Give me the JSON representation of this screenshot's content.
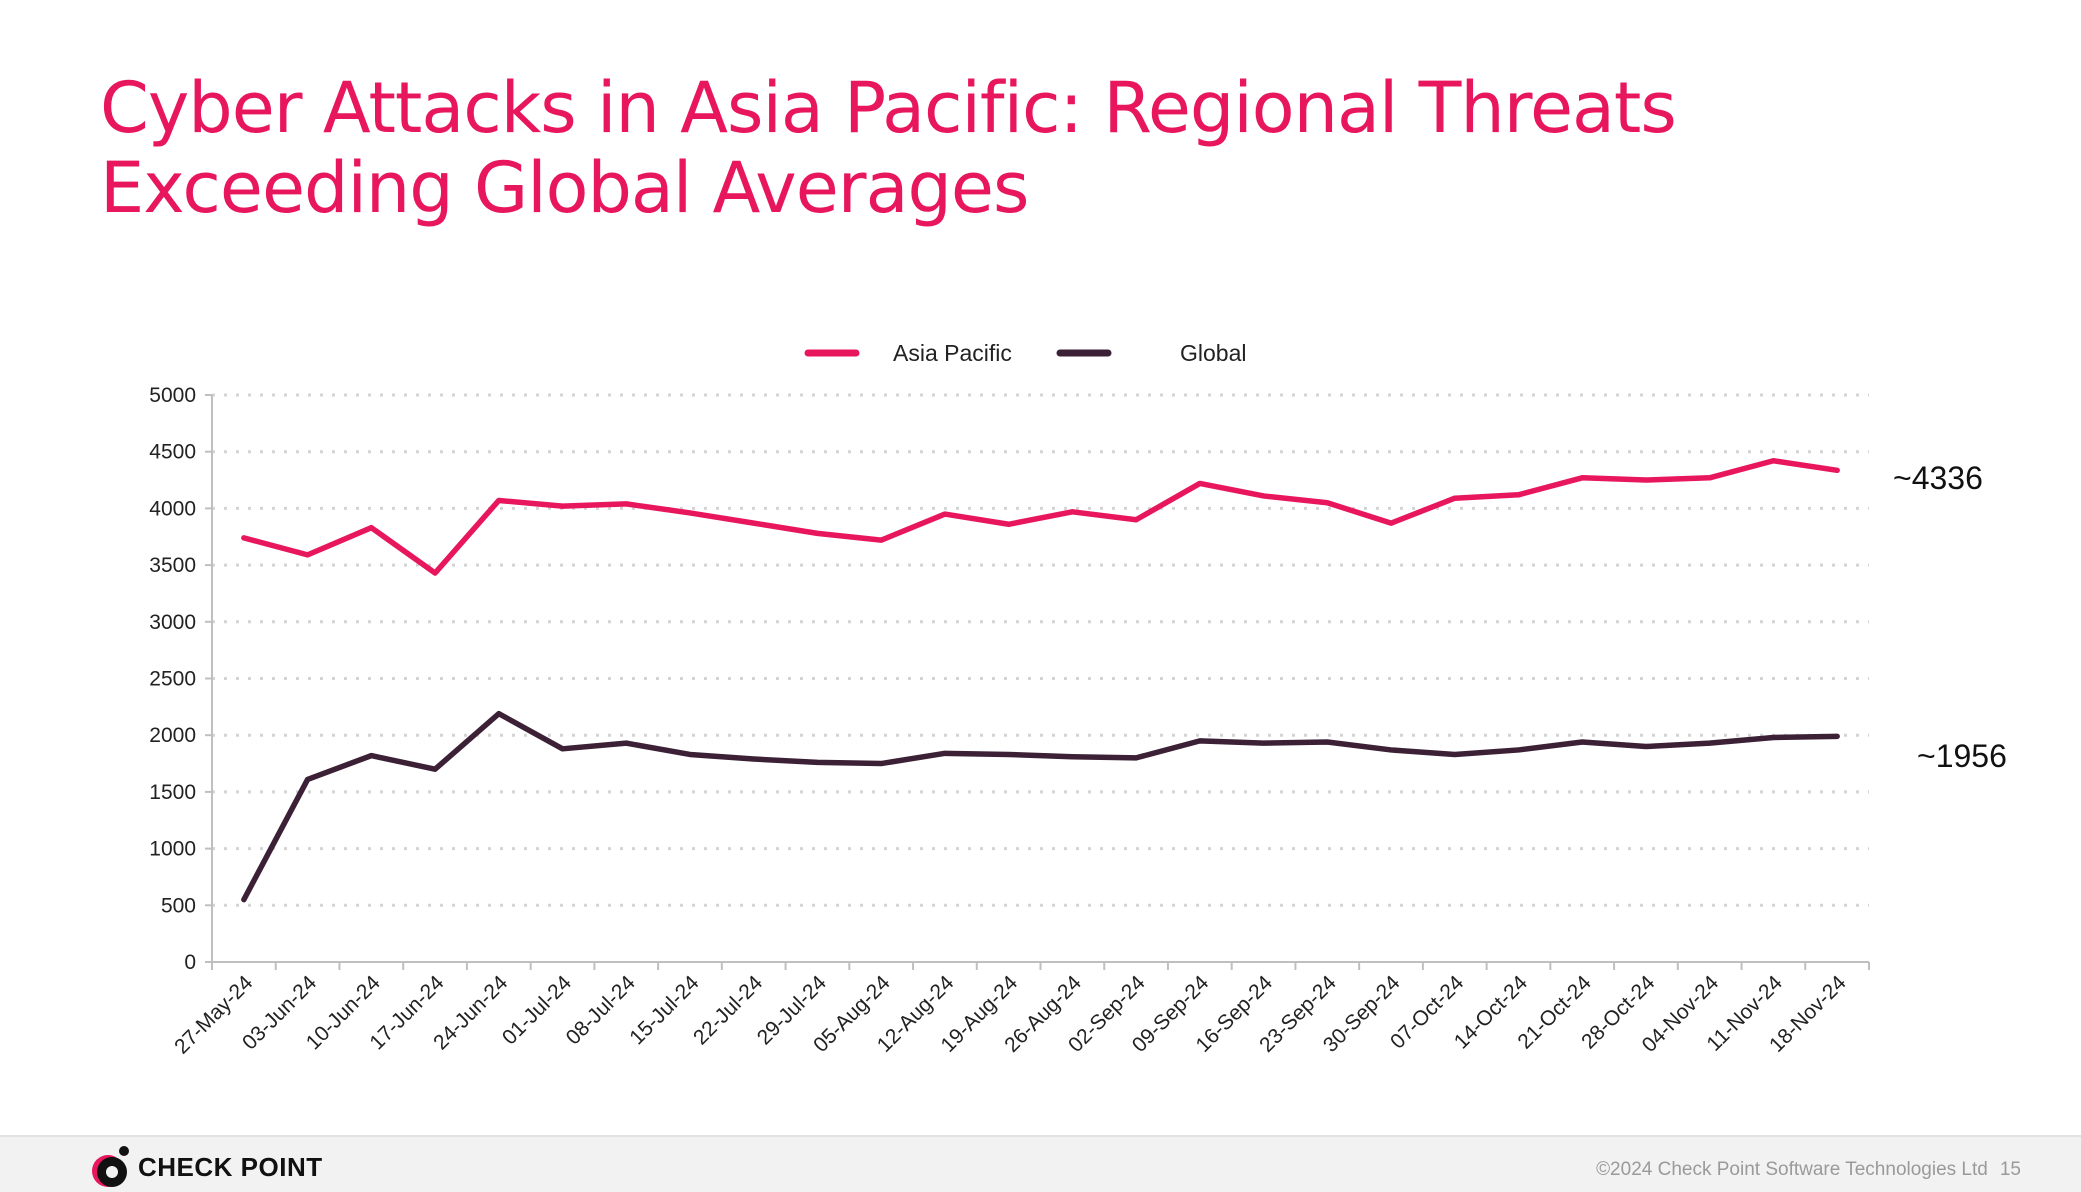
{
  "title": "Cyber Attacks in Asia Pacific: Regional Threats Exceeding Global Averages",
  "footer": {
    "logo_text": "CHECK POINT",
    "copyright": "©2024 Check Point Software Technologies Ltd",
    "page_number": "15"
  },
  "chart_data": {
    "type": "line",
    "title": "",
    "xlabel": "",
    "ylabel": "",
    "ylim": [
      0,
      5000
    ],
    "yticks": [
      0,
      500,
      1000,
      1500,
      2000,
      2500,
      3000,
      3500,
      4000,
      4500,
      5000
    ],
    "grid": true,
    "legend_position": "top-center",
    "categories": [
      "27-May-24",
      "03-Jun-24",
      "10-Jun-24",
      "17-Jun-24",
      "24-Jun-24",
      "01-Jul-24",
      "08-Jul-24",
      "15-Jul-24",
      "22-Jul-24",
      "29-Jul-24",
      "05-Aug-24",
      "12-Aug-24",
      "19-Aug-24",
      "26-Aug-24",
      "02-Sep-24",
      "09-Sep-24",
      "16-Sep-24",
      "23-Sep-24",
      "30-Sep-24",
      "07-Oct-24",
      "14-Oct-24",
      "21-Oct-24",
      "28-Oct-24",
      "04-Nov-24",
      "11-Nov-24",
      "18-Nov-24"
    ],
    "series": [
      {
        "name": "Asia Pacific",
        "color": "#e8175d",
        "values": [
          3740,
          3590,
          3830,
          3430,
          4070,
          4020,
          4040,
          3960,
          3870,
          3780,
          3720,
          3950,
          3860,
          3970,
          3900,
          4220,
          4110,
          4050,
          3870,
          4090,
          4120,
          4270,
          4250,
          4270,
          4420,
          4336
        ]
      },
      {
        "name": "Global",
        "color": "#3c2136",
        "values": [
          550,
          1610,
          1820,
          1700,
          2190,
          1880,
          1930,
          1830,
          1790,
          1760,
          1750,
          1840,
          1830,
          1810,
          1800,
          1950,
          1930,
          1940,
          1870,
          1830,
          1870,
          1940,
          1900,
          1930,
          1980,
          1990
        ]
      }
    ],
    "annotations": [
      {
        "text": "~4336",
        "series": "Asia Pacific"
      },
      {
        "text": "~1956",
        "series": "Global"
      }
    ]
  }
}
